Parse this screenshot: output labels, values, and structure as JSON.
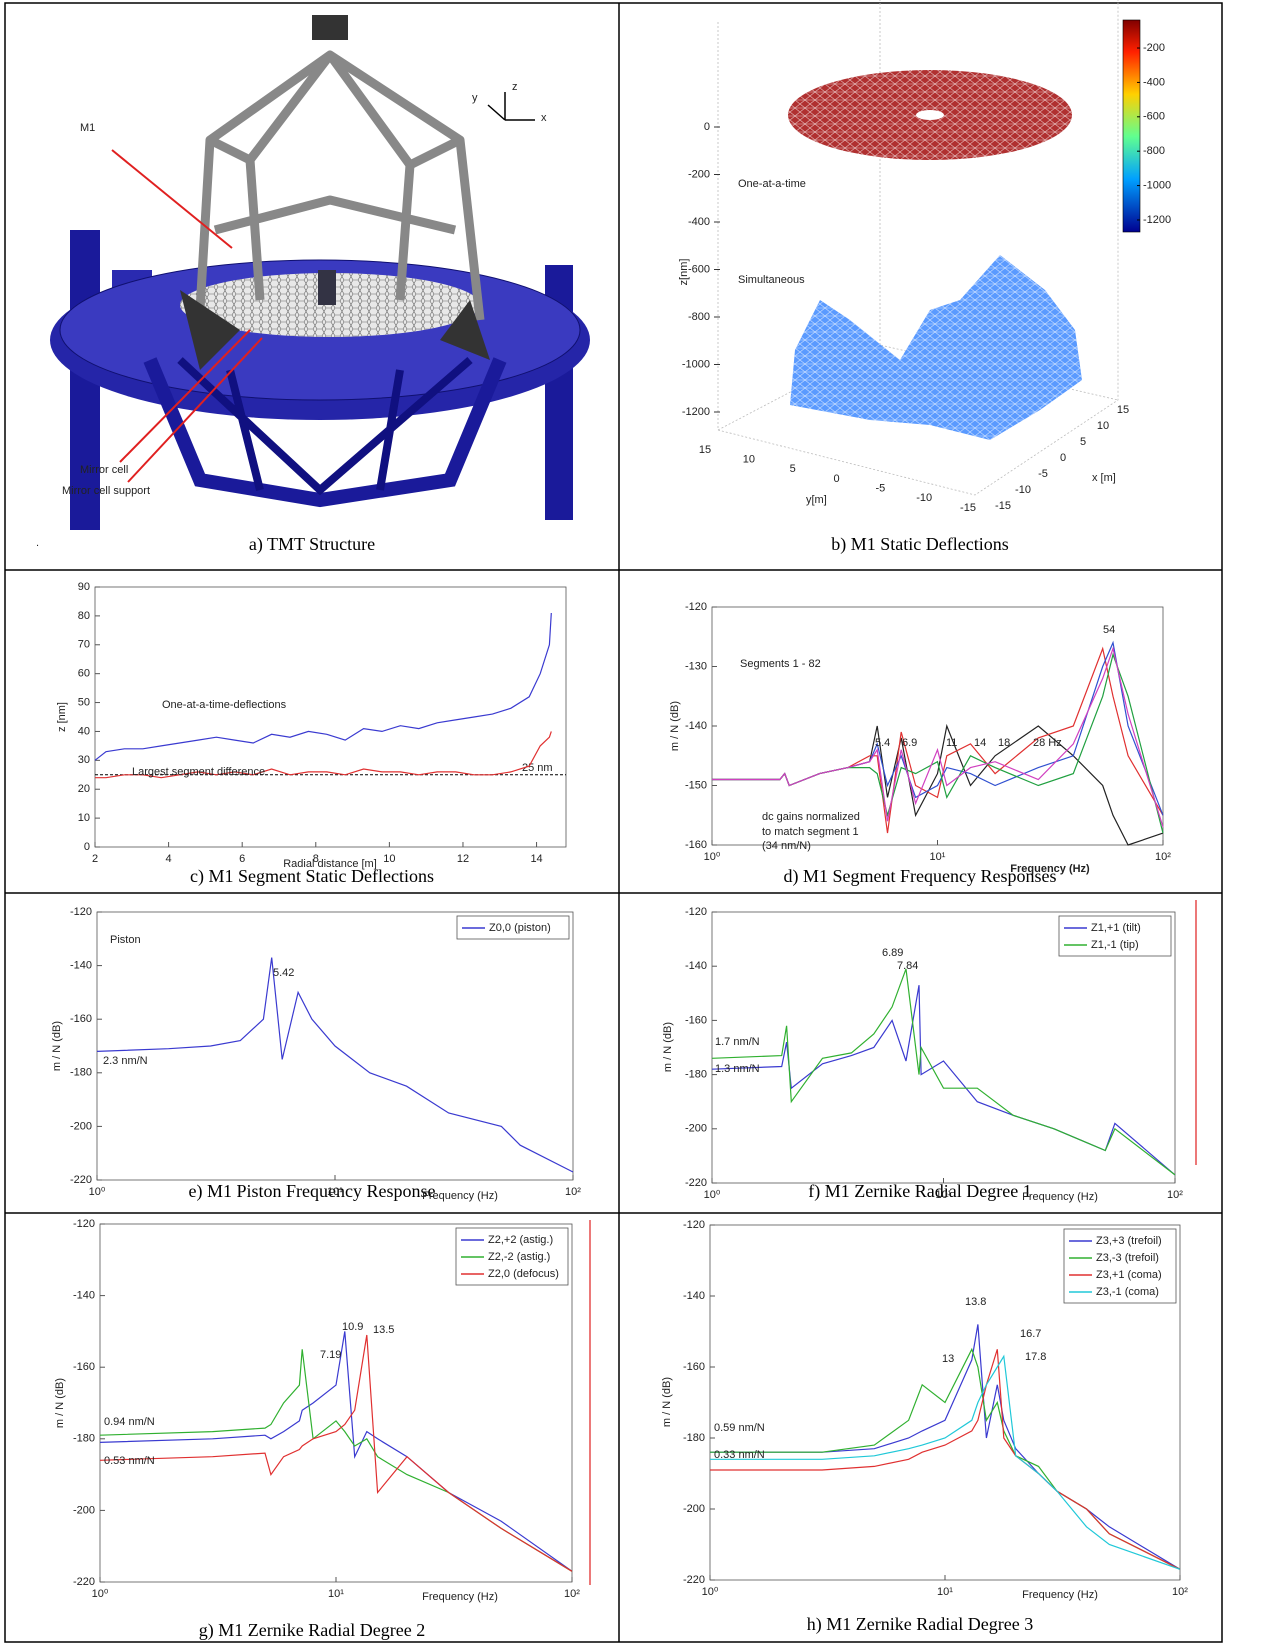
{
  "panels": [
    {
      "caption": "a) TMT Structure",
      "labels": {
        "m1": "M1",
        "x": "x",
        "y": "y",
        "z": "z",
        "mirror_cell": "Mirror cell",
        "mirror_cell_support": "Mirror cell support",
        "dot": "."
      }
    },
    {
      "caption": "b) M1 Static Deflections",
      "chart": {
        "type": "surface3d",
        "zlabel": "z[nm]",
        "xlabel": "x [m]",
        "ylabel": "y[m]",
        "zlim": [
          -1200,
          0
        ],
        "zticks": [
          0,
          -200,
          -400,
          -600,
          -800,
          -1000,
          -1200
        ],
        "xlim": [
          -15,
          15
        ],
        "xticks": [
          15,
          10,
          5,
          0,
          -5,
          -10,
          -15
        ],
        "ylim": [
          -15,
          15
        ],
        "yticks": [
          15,
          10,
          5,
          0,
          -5,
          -10,
          -15
        ],
        "clim": [
          -1270,
          -37
        ],
        "cticks": [
          -200,
          -400,
          -600,
          -800,
          -1000,
          -1200
        ],
        "annotations": [
          "One-at-a-time",
          "Simultaneous"
        ]
      }
    },
    {
      "caption": "c) M1 Segment Static Deflections",
      "chart": {
        "type": "line",
        "xlabel": "Radial distance [m]",
        "ylabel": "z [nm]",
        "xlim": [
          2,
          14.8
        ],
        "xticks": [
          2,
          4,
          6,
          8,
          10,
          12,
          14
        ],
        "ylim": [
          0,
          90
        ],
        "yticks": [
          0,
          10,
          20,
          30,
          40,
          50,
          60,
          70,
          80,
          90
        ],
        "x": [
          2,
          2.3,
          2.8,
          3.3,
          3.8,
          4.3,
          4.8,
          5.3,
          5.8,
          6.3,
          6.8,
          7.3,
          7.8,
          8.3,
          8.8,
          9.3,
          9.8,
          10.3,
          10.8,
          11.3,
          11.8,
          12.3,
          12.8,
          13.3,
          13.8,
          14.1,
          14.35,
          14.4
        ],
        "series": [
          {
            "color": "#3a3ad0",
            "values": [
              30,
              33,
              34,
              34,
              35,
              36,
              37,
              38,
              37,
              36,
              39,
              38,
              40,
              39,
              37,
              41,
              40,
              42,
              41,
              43,
              44,
              45,
              46,
              48,
              52,
              60,
              70,
              81
            ]
          },
          {
            "color": "#e03030",
            "values": [
              24,
              24,
              25,
              25,
              24,
              25,
              26,
              25,
              26,
              25,
              27,
              25,
              26,
              26,
              25,
              27,
              26,
              26,
              25,
              26,
              26,
              25,
              25,
              26,
              28,
              35,
              38,
              40
            ]
          }
        ],
        "hline": {
          "value": 25,
          "label": "25 nm"
        },
        "annotations": [
          "One-at-a-time-deflections",
          "Largest segment difference"
        ]
      }
    },
    {
      "caption": "d) M1 Segment Frequency Responses",
      "chart": {
        "type": "line",
        "xscale": "log",
        "xlabel": "Frequency  (Hz)",
        "ylabel": "m / N (dB)",
        "xlim": [
          1,
          100
        ],
        "xticks": [
          {
            "value": 1,
            "label": "10⁰"
          },
          {
            "value": 10,
            "label": "10¹"
          },
          {
            "value": 100,
            "label": "10²"
          }
        ],
        "ylim": [
          -160,
          -120
        ],
        "yticks": [
          -160,
          -150,
          -140,
          -130,
          -120
        ],
        "x": [
          1,
          2,
          2.1,
          2.2,
          3,
          4,
          5,
          5.4,
          6,
          6.9,
          8,
          10,
          11,
          14,
          18,
          28,
          40,
          54,
          60,
          70,
          100
        ],
        "series": [
          {
            "color": "#222222",
            "values": [
              -149,
              -149,
              -148,
              -150,
              -148,
              -147,
              -146,
              -140,
              -152,
              -142,
              -155,
              -148,
              -140,
              -150,
              -145,
              -140,
              -145,
              -150,
              -155,
              -160,
              -158
            ]
          },
          {
            "color": "#e03030",
            "values": [
              -149,
              -149,
              -148,
              -150,
              -148,
              -147,
              -145,
              -145,
              -158,
              -141,
              -150,
              -152,
              -145,
              -143,
              -148,
              -142,
              -140,
              -127,
              -135,
              -145,
              -155
            ]
          },
          {
            "color": "#3050d0",
            "values": [
              -149,
              -149,
              -148,
              -150,
              -148,
              -147,
              -146,
              -143,
              -150,
              -145,
              -152,
              -150,
              -147,
              -148,
              -150,
              -147,
              -145,
              -130,
              -126,
              -140,
              -155
            ]
          },
          {
            "color": "#20a040",
            "values": [
              -149,
              -149,
              -148,
              -150,
              -148,
              -147,
              -147,
              -148,
              -155,
              -147,
              -148,
              -146,
              -152,
              -145,
              -147,
              -150,
              -148,
              -135,
              -128,
              -135,
              -158
            ]
          },
          {
            "color": "#d040c0",
            "values": [
              -149,
              -149,
              -148,
              -150,
              -148,
              -147,
              -146,
              -144,
              -156,
              -144,
              -153,
              -144,
              -150,
              -147,
              -146,
              -149,
              -143,
              -132,
              -127,
              -138,
              -157
            ]
          }
        ],
        "annotations": [
          "Segments 1 - 82",
          "54",
          "5.4",
          "6.9",
          "11",
          "14",
          "18",
          "28 Hz",
          "dc gains normalized",
          "to match segment 1",
          "(34 nm/N)"
        ]
      }
    },
    {
      "caption": "e) M1 Piston Frequency Response",
      "chart": {
        "type": "line",
        "xscale": "log",
        "xlabel": "Frequency  (Hz)",
        "ylabel": "m / N (dB)",
        "legend": "upper right",
        "xlim": [
          1,
          100
        ],
        "xticks": [
          {
            "value": 1,
            "label": "10⁰"
          },
          {
            "value": 10,
            "label": "10¹"
          },
          {
            "value": 100,
            "label": "10²"
          }
        ],
        "ylim": [
          -220,
          -120
        ],
        "yticks": [
          -220,
          -200,
          -180,
          -160,
          -140,
          -120
        ],
        "x": [
          1,
          2,
          3,
          4,
          5,
          5.42,
          6,
          7,
          8,
          10,
          14,
          20,
          30,
          50,
          60,
          100
        ],
        "series": [
          {
            "name": "Z0,0 (piston)",
            "color": "#3a3ad0",
            "values": [
              -172,
              -171,
              -170,
              -168,
              -160,
              -137,
              -175,
              -150,
              -160,
              -170,
              -180,
              -185,
              -195,
              -200,
              -207,
              -217
            ]
          }
        ],
        "annotations": [
          "Piston",
          "5.42",
          "2.3 nm/N"
        ]
      }
    },
    {
      "caption": "f) M1 Zernike Radial Degree 1",
      "chart": {
        "type": "line",
        "xscale": "log",
        "xlabel": "Frequency  (Hz)",
        "ylabel": "m / N (dB)",
        "legend": "upper right",
        "xlim": [
          1,
          100
        ],
        "xticks": [
          {
            "value": 1,
            "label": "10⁰"
          },
          {
            "value": 10,
            "label": "10¹"
          },
          {
            "value": 100,
            "label": "10²"
          }
        ],
        "ylim": [
          -220,
          -120
        ],
        "yticks": [
          -220,
          -200,
          -180,
          -160,
          -140,
          -120
        ],
        "x": [
          1,
          2,
          2.1,
          2.2,
          3,
          4,
          5,
          6,
          6.89,
          7.84,
          8,
          10,
          14,
          20,
          30,
          50,
          55,
          100
        ],
        "series": [
          {
            "name": "Z1,+1 (tilt)",
            "color": "#3a3ad0",
            "values": [
              -178,
              -177,
              -168,
              -185,
              -176,
              -173,
              -170,
              -160,
              -175,
              -147,
              -180,
              -175,
              -190,
              -195,
              -200,
              -208,
              -198,
              -217
            ]
          },
          {
            "name": "Z1,-1 (tip)",
            "color": "#30b030",
            "values": [
              -174,
              -173,
              -162,
              -190,
              -174,
              -172,
              -165,
              -155,
              -141,
              -180,
              -170,
              -185,
              -185,
              -195,
              -200,
              -208,
              -200,
              -217
            ]
          }
        ],
        "annotations": [
          "6.89",
          "7.84",
          "1.7 nm/N",
          "1.3 nm/N"
        ]
      }
    },
    {
      "caption": "g) M1 Zernike Radial Degree 2",
      "chart": {
        "type": "line",
        "xscale": "log",
        "xlabel": "Frequency  (Hz)",
        "ylabel": "m / N (dB)",
        "legend": "upper right",
        "xlim": [
          1,
          100
        ],
        "xticks": [
          {
            "value": 1,
            "label": "10⁰"
          },
          {
            "value": 10,
            "label": "10¹"
          },
          {
            "value": 100,
            "label": "10²"
          }
        ],
        "ylim": [
          -220,
          -120
        ],
        "yticks": [
          -220,
          -200,
          -180,
          -160,
          -140,
          -120
        ],
        "x": [
          1,
          3,
          5,
          5.3,
          6,
          7,
          7.19,
          8,
          10,
          10.9,
          12,
          13.5,
          15,
          20,
          30,
          50,
          100
        ],
        "series": [
          {
            "name": "Z2,+2 (astig.)",
            "color": "#3a3ad0",
            "values": [
              -181,
              -180,
              -179,
              -180,
              -178,
              -175,
              -172,
              -170,
              -165,
              -150,
              -185,
              -178,
              -180,
              -185,
              -195,
              -203,
              -217
            ]
          },
          {
            "name": "Z2,-2 (astig.)",
            "color": "#30b030",
            "values": [
              -179,
              -178,
              -177,
              -176,
              -170,
              -165,
              -155,
              -180,
              -175,
              -178,
              -182,
              -180,
              -185,
              -190,
              -195,
              -205,
              -217
            ]
          },
          {
            "name": "Z2,0 (defocus)",
            "color": "#e03030",
            "values": [
              -186,
              -185,
              -184,
              -190,
              -185,
              -183,
              -182,
              -180,
              -178,
              -176,
              -172,
              -151,
              -195,
              -185,
              -195,
              -205,
              -217
            ]
          }
        ],
        "annotations": [
          "7.19",
          "10.9",
          "13.5",
          "0.94 nm/N",
          "0.53 nm/N"
        ]
      }
    },
    {
      "caption": "h) M1 Zernike Radial Degree 3",
      "chart": {
        "type": "line",
        "xscale": "log",
        "xlabel": "Frequency  (Hz)",
        "ylabel": "m / N (dB)",
        "legend": "upper right",
        "xlim": [
          1,
          100
        ],
        "xticks": [
          {
            "value": 1,
            "label": "10⁰"
          },
          {
            "value": 10,
            "label": "10¹"
          },
          {
            "value": 100,
            "label": "10²"
          }
        ],
        "ylim": [
          -220,
          -120
        ],
        "yticks": [
          -220,
          -200,
          -180,
          -160,
          -140,
          -120
        ],
        "x": [
          1,
          3,
          5,
          7,
          8,
          10,
          13,
          13.8,
          15,
          16.7,
          17.8,
          20,
          25,
          30,
          40,
          50,
          100
        ],
        "series": [
          {
            "name": "Z3,+3 (trefoil)",
            "color": "#3a3ad0",
            "values": [
              -184,
              -184,
              -183,
              -180,
              -178,
              -175,
              -158,
              -148,
              -180,
              -165,
              -175,
              -183,
              -190,
              -195,
              -200,
              -205,
              -217
            ]
          },
          {
            "name": "Z3,-3 (trefoil)",
            "color": "#30b030",
            "values": [
              -184,
              -184,
              -182,
              -175,
              -165,
              -170,
              -155,
              -160,
              -175,
              -170,
              -178,
              -185,
              -188,
              -195,
              -200,
              -207,
              -217
            ]
          },
          {
            "name": "Z3,+1 (coma)",
            "color": "#e03030",
            "values": [
              -189,
              -189,
              -188,
              -186,
              -184,
              -182,
              -178,
              -175,
              -165,
              -155,
              -180,
              -185,
              -190,
              -195,
              -200,
              -207,
              -217
            ]
          },
          {
            "name": "Z3,-1 (coma)",
            "color": "#20c8d8",
            "values": [
              -186,
              -186,
              -185,
              -183,
              -182,
              -180,
              -175,
              -170,
              -165,
              -160,
              -157,
              -185,
              -190,
              -195,
              -205,
              -210,
              -217
            ]
          }
        ],
        "annotations": [
          "13.8",
          "13",
          "16.7",
          "17.8",
          "0.59 nm/N",
          "0.33 nm/N"
        ]
      }
    }
  ]
}
